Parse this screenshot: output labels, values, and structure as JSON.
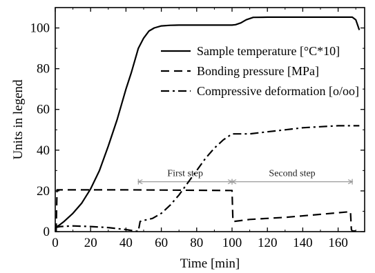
{
  "chart_data": {
    "type": "line",
    "xlabel": "Time [min]",
    "ylabel": "Units in legend",
    "xlim": [
      0,
      175
    ],
    "ylim": [
      0,
      110
    ],
    "x_ticks": [
      0,
      20,
      40,
      60,
      80,
      100,
      120,
      140,
      160
    ],
    "y_ticks": [
      0,
      20,
      40,
      60,
      80,
      100
    ],
    "legend_position": "top-right",
    "series": [
      {
        "name": "Sample temperature [°C*10]",
        "style": "solid",
        "x": [
          0,
          2,
          5,
          10,
          15,
          20,
          25,
          30,
          35,
          40,
          43,
          45,
          47,
          50,
          53,
          56,
          60,
          65,
          70,
          80,
          90,
          100,
          102,
          105,
          108,
          112,
          120,
          130,
          140,
          150,
          160,
          168,
          170,
          172
        ],
        "y": [
          2,
          3,
          5,
          9,
          14,
          21,
          30,
          42,
          55,
          70,
          78,
          84,
          90,
          95,
          98.5,
          100,
          101,
          101.3,
          101.4,
          101.4,
          101.4,
          101.4,
          101.6,
          102.5,
          104,
          105.2,
          105.3,
          105.3,
          105.3,
          105.3,
          105.3,
          105.3,
          104,
          99
        ]
      },
      {
        "name": "Bonding pressure [MPa]",
        "style": "dashed",
        "x": [
          0.5,
          1,
          2,
          40,
          60,
          99,
          100,
          100.5,
          101,
          110,
          130,
          150,
          167,
          167.5,
          168,
          172
        ],
        "y": [
          0,
          20.5,
          20.5,
          20.5,
          20.4,
          20.2,
          20.2,
          5,
          5,
          6,
          7,
          8.5,
          9.8,
          1,
          0.3,
          0.3
        ]
      },
      {
        "name": "Compressive deformation [o/oo]",
        "style": "dashdot",
        "x": [
          0,
          3,
          10,
          20,
          30,
          40,
          46,
          47,
          48,
          50,
          55,
          60,
          65,
          70,
          75,
          80,
          85,
          90,
          95,
          100,
          105,
          110,
          120,
          130,
          140,
          150,
          160,
          172
        ],
        "y": [
          2,
          2.5,
          2.8,
          2.5,
          2,
          1,
          0.2,
          0.2,
          5,
          5.5,
          6.5,
          9,
          13,
          18,
          24,
          30,
          36,
          41,
          45,
          48,
          48,
          48,
          49,
          50,
          51,
          51.5,
          52,
          52
        ]
      }
    ],
    "annotations": [
      {
        "text": "First step",
        "x_start": 47,
        "x_end": 100,
        "y": 24.5
      },
      {
        "text": "Second step",
        "x_start": 100,
        "x_end": 168,
        "y": 24.5
      }
    ],
    "annotation_color": "#999999"
  }
}
